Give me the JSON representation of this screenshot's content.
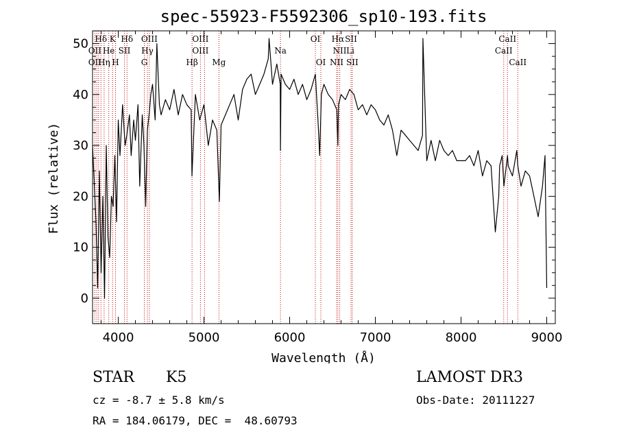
{
  "chart_data": {
    "type": "line",
    "title": "spec-55923-F5592306_sp10-193.fits",
    "xlabel": "Wavelength (Å)",
    "ylabel": "Flux (relative)",
    "xlim": [
      3700,
      9100
    ],
    "ylim": [
      -5,
      52.5
    ],
    "xticks": [
      4000,
      5000,
      6000,
      7000,
      8000,
      9000
    ],
    "yticks": [
      0,
      10,
      20,
      30,
      40,
      50
    ],
    "grid": false,
    "series": [
      {
        "x": [
          3700,
          3740,
          3760,
          3780,
          3800,
          3820,
          3840,
          3860,
          3880,
          3900,
          3920,
          3940,
          3960,
          3980,
          4000,
          4020,
          4050,
          4080,
          4100,
          4130,
          4150,
          4180,
          4200,
          4230,
          4250,
          4280,
          4300,
          4320,
          4340,
          4360,
          4380,
          4400,
          4430,
          4450,
          4480,
          4500,
          4550,
          4600,
          4650,
          4700,
          4750,
          4800,
          4850,
          4860,
          4900,
          4950,
          5000,
          5050,
          5100,
          5150,
          5180,
          5200,
          5250,
          5300,
          5350,
          5400,
          5450,
          5500,
          5550,
          5600,
          5650,
          5700,
          5750,
          5760,
          5800,
          5850,
          5890,
          5893,
          5900,
          5950,
          6000,
          6050,
          6100,
          6150,
          6200,
          6250,
          6300,
          6330,
          6350,
          6370,
          6400,
          6450,
          6500,
          6550,
          6563,
          6570,
          6600,
          6650,
          6700,
          6750,
          6800,
          6850,
          6900,
          6950,
          7000,
          7050,
          7100,
          7150,
          7200,
          7250,
          7300,
          7350,
          7400,
          7450,
          7500,
          7550,
          7555,
          7600,
          7650,
          7700,
          7750,
          7800,
          7850,
          7900,
          7950,
          8000,
          8050,
          8100,
          8150,
          8200,
          8250,
          8300,
          8350,
          8400,
          8440,
          8450,
          8480,
          8500,
          8542,
          8550,
          8600,
          8650,
          8662,
          8700,
          8750,
          8800,
          8850,
          8900,
          8950,
          8980,
          9000
        ],
        "y": [
          30,
          15,
          2,
          25,
          5,
          20,
          0,
          30,
          12,
          8,
          20,
          18,
          28,
          15,
          35,
          28,
          38,
          30,
          32,
          36,
          28,
          35,
          31,
          38,
          22,
          36,
          30,
          18,
          33,
          36,
          40,
          42,
          35,
          50,
          38,
          36,
          39,
          37,
          41,
          36,
          40,
          38,
          37,
          24,
          40,
          35,
          38,
          30,
          35,
          33,
          19,
          34,
          36,
          38,
          40,
          35,
          41,
          43,
          44,
          40,
          42,
          44,
          47,
          51,
          42,
          46,
          42,
          29,
          44,
          42,
          41,
          43,
          40,
          42,
          39,
          41,
          44,
          35,
          28,
          40,
          42,
          40,
          39,
          37,
          30,
          38,
          40,
          39,
          41,
          40,
          37,
          38,
          36,
          38,
          37,
          35,
          34,
          36,
          33,
          28,
          33,
          32,
          31,
          30,
          29,
          32,
          51,
          27,
          31,
          27,
          31,
          29,
          28,
          29,
          27,
          27,
          27,
          28,
          26,
          29,
          24,
          27,
          26,
          13,
          20,
          26,
          28,
          22,
          28,
          26,
          24,
          29,
          26,
          22,
          25,
          24,
          20,
          16,
          22,
          28,
          2
        ]
      }
    ],
    "line_markers": [
      {
        "label": "Hδ",
        "w": 3798,
        "row": 1
      },
      {
        "label": "K",
        "w": 3934,
        "row": 1
      },
      {
        "label": "Hδ",
        "w": 4102,
        "row": 1
      },
      {
        "label": "OIII",
        "w": 4363,
        "row": 1
      },
      {
        "label": "OIII",
        "w": 4959,
        "row": 1
      },
      {
        "label": "OI",
        "w": 6300,
        "row": 1
      },
      {
        "label": "Hα",
        "w": 6563,
        "row": 1
      },
      {
        "label": "SII",
        "w": 6716,
        "row": 1
      },
      {
        "label": "CaII",
        "w": 8542,
        "row": 1
      },
      {
        "label": "OII",
        "w": 3727,
        "row": 2
      },
      {
        "label": "He",
        "w": 3889,
        "row": 2
      },
      {
        "label": "SII",
        "w": 4072,
        "row": 2
      },
      {
        "label": "Hγ",
        "w": 4340,
        "row": 2
      },
      {
        "label": "OIII",
        "w": 4959,
        "row": 2
      },
      {
        "label": "Na",
        "w": 5893,
        "row": 2
      },
      {
        "label": "NII",
        "w": 6584,
        "row": 2
      },
      {
        "label": "Li",
        "w": 6708,
        "row": 2
      },
      {
        "label": "CaII",
        "w": 8498,
        "row": 2
      },
      {
        "label": "OII",
        "w": 3727,
        "row": 3
      },
      {
        "label": "Hη",
        "w": 3835,
        "row": 3
      },
      {
        "label": "H",
        "w": 3968,
        "row": 3
      },
      {
        "label": "G",
        "w": 4304,
        "row": 3
      },
      {
        "label": "Hβ",
        "w": 4861,
        "row": 3
      },
      {
        "label": "Mg",
        "w": 5175,
        "row": 3
      },
      {
        "label": "OI",
        "w": 6364,
        "row": 3
      },
      {
        "label": "NII",
        "w": 6548,
        "row": 3
      },
      {
        "label": "SII",
        "w": 6731,
        "row": 3
      },
      {
        "label": "CaII",
        "w": 8662,
        "row": 3
      }
    ],
    "marker_lines": [
      3727,
      3750,
      3770,
      3798,
      3835,
      3889,
      3934,
      3968,
      4072,
      4102,
      4304,
      4340,
      4363,
      4861,
      4959,
      5007,
      5175,
      5893,
      6300,
      6364,
      6548,
      6563,
      6584,
      6716,
      6731,
      8498,
      8542,
      8662
    ],
    "colors": {
      "spectrum": "#000000",
      "marker": "#c00000",
      "axis": "#000000"
    }
  },
  "info": {
    "obj_class": "STAR",
    "subclass": "K5",
    "survey": "LAMOST DR3",
    "cz": "cz = -8.7 ± 5.8 km/s",
    "obs_date": "Obs-Date: 20111227",
    "radec": "RA = 184.06179, DEC =  48.60793"
  }
}
